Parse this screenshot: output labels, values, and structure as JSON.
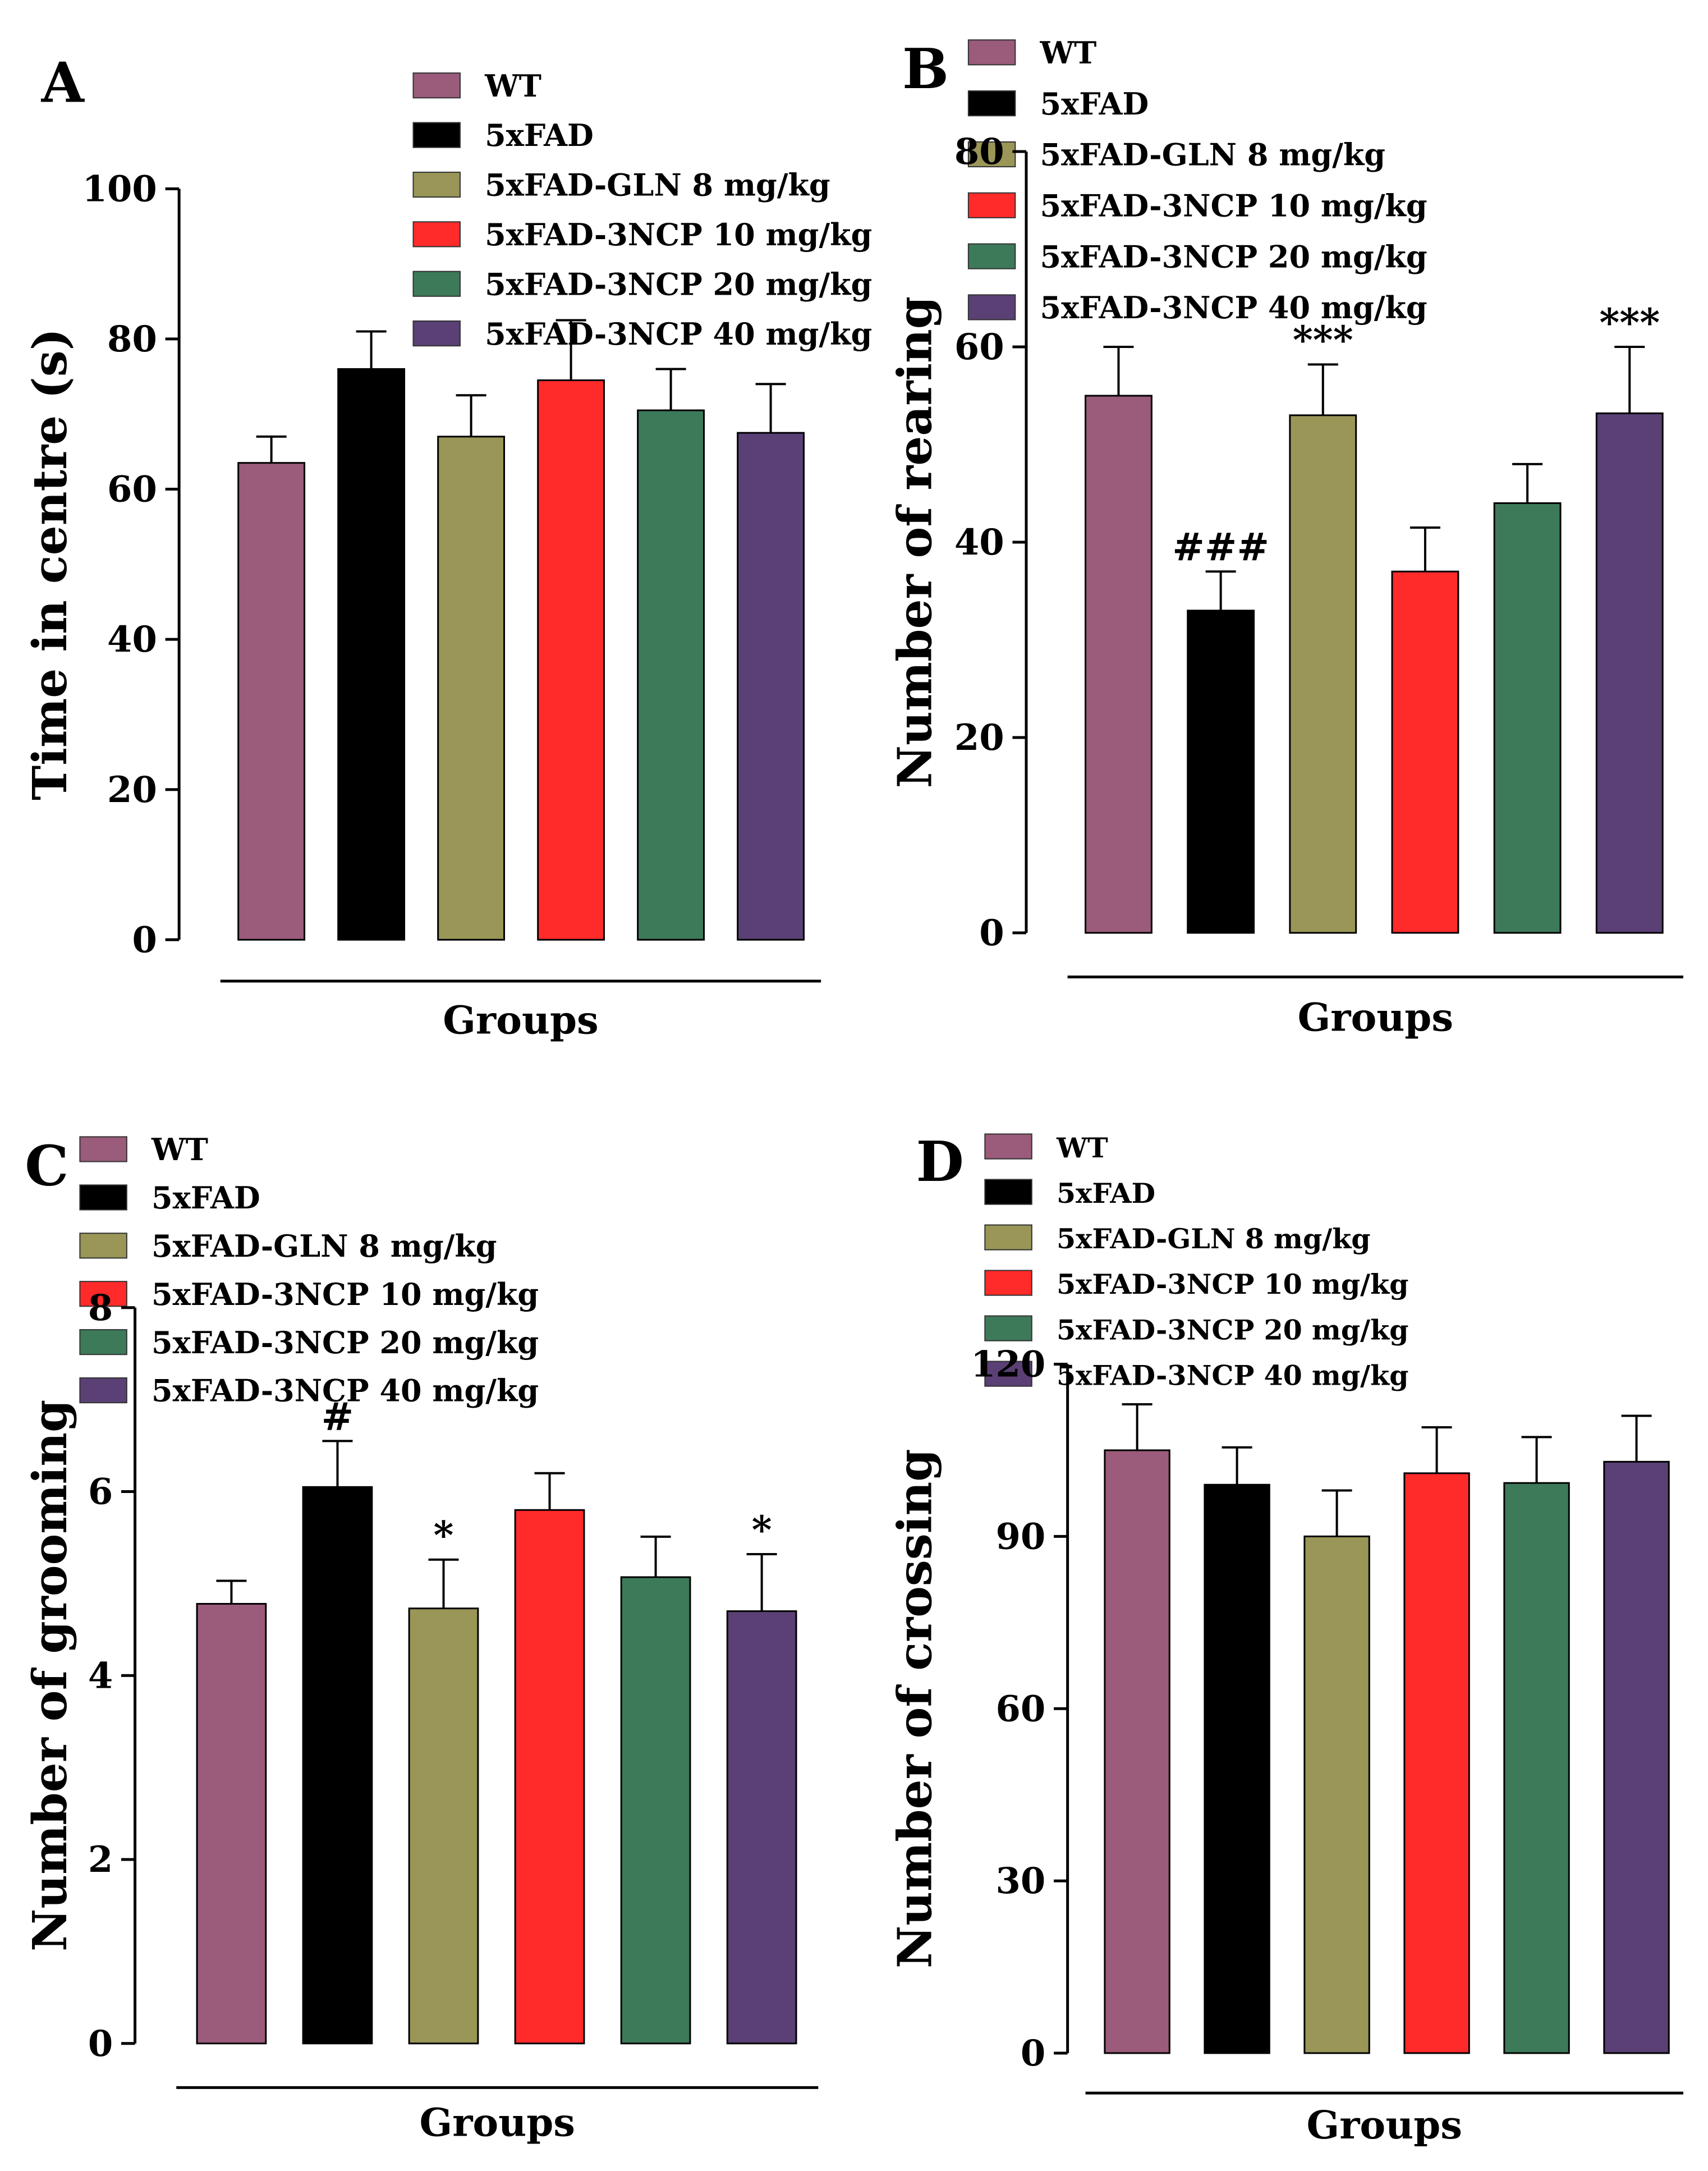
{
  "groups": [
    {
      "label": "WT",
      "color": "#9b5b7a"
    },
    {
      "label": "5xFAD",
      "color": "#000000"
    },
    {
      "label": "5xFAD-GLN 8 mg/kg",
      "color": "#999657"
    },
    {
      "label": "5xFAD-3NCP 10 mg/kg",
      "color": "#ff2a2a"
    },
    {
      "label": "5xFAD-3NCP 20 mg/kg",
      "color": "#3d7a5a"
    },
    {
      "label": "5xFAD-3NCP 40 mg/kg",
      "color": "#5a4075"
    }
  ],
  "chart_data": [
    {
      "panel": "A",
      "type": "bar",
      "title": "",
      "xlabel": "Groups",
      "ylabel": "Time in centre (s)",
      "categories": [
        "WT",
        "5xFAD",
        "5xFAD-GLN 8 mg/kg",
        "5xFAD-3NCP 10 mg/kg",
        "5xFAD-3NCP 20 mg/kg",
        "5xFAD-3NCP 40 mg/kg"
      ],
      "values": [
        63.5,
        76,
        67,
        74.5,
        70.5,
        67.5
      ],
      "errors": [
        3.5,
        5,
        5.5,
        8,
        5.5,
        6.5
      ],
      "annotations": [
        "",
        "",
        "",
        "",
        "",
        ""
      ],
      "ylim": [
        0,
        100
      ],
      "yticks": [
        0,
        20,
        40,
        60,
        80,
        100
      ],
      "legend": "top"
    },
    {
      "panel": "B",
      "type": "bar",
      "title": "",
      "xlabel": "Groups",
      "ylabel": "Number of rearing",
      "categories": [
        "WT",
        "5xFAD",
        "5xFAD-GLN 8 mg/kg",
        "5xFAD-3NCP 10 mg/kg",
        "5xFAD-3NCP 20 mg/kg",
        "5xFAD-3NCP 40 mg/kg"
      ],
      "values": [
        55,
        33,
        53,
        37,
        44,
        53.2
      ],
      "errors": [
        5,
        4,
        5.2,
        4.5,
        4,
        6.8
      ],
      "annotations": [
        "",
        "###",
        "***",
        "",
        "",
        "***"
      ],
      "ylim": [
        0,
        80
      ],
      "yticks": [
        0,
        20,
        40,
        60,
        80
      ],
      "legend": "top"
    },
    {
      "panel": "C",
      "type": "bar",
      "title": "",
      "xlabel": "Groups",
      "ylabel": "Number of grooming",
      "categories": [
        "WT",
        "5xFAD",
        "5xFAD-GLN 8 mg/kg",
        "5xFAD-3NCP 10 mg/kg",
        "5xFAD-3NCP 20 mg/kg",
        "5xFAD-3NCP 40 mg/kg"
      ],
      "values": [
        4.78,
        6.05,
        4.73,
        5.8,
        5.07,
        4.7
      ],
      "errors": [
        0.25,
        0.5,
        0.53,
        0.4,
        0.44,
        0.62
      ],
      "annotations": [
        "",
        "#",
        "*",
        "",
        "",
        "*"
      ],
      "ylim": [
        0,
        8
      ],
      "yticks": [
        0,
        2,
        4,
        6,
        8
      ],
      "legend": "top"
    },
    {
      "panel": "D",
      "type": "bar",
      "title": "",
      "xlabel": "Groups",
      "ylabel": "Number of crossing",
      "categories": [
        "WT",
        "5xFAD",
        "5xFAD-GLN 8 mg/kg",
        "5xFAD-3NCP 10 mg/kg",
        "5xFAD-3NCP 20 mg/kg",
        "5xFAD-3NCP 40 mg/kg"
      ],
      "values": [
        105,
        99,
        90,
        101,
        99.3,
        103
      ],
      "errors": [
        8,
        6.5,
        8,
        8,
        8,
        8
      ],
      "annotations": [
        "",
        "",
        "",
        "",
        "",
        ""
      ],
      "ylim": [
        0,
        120
      ],
      "yticks": [
        0,
        30,
        60,
        90,
        120
      ],
      "legend": "top"
    }
  ]
}
